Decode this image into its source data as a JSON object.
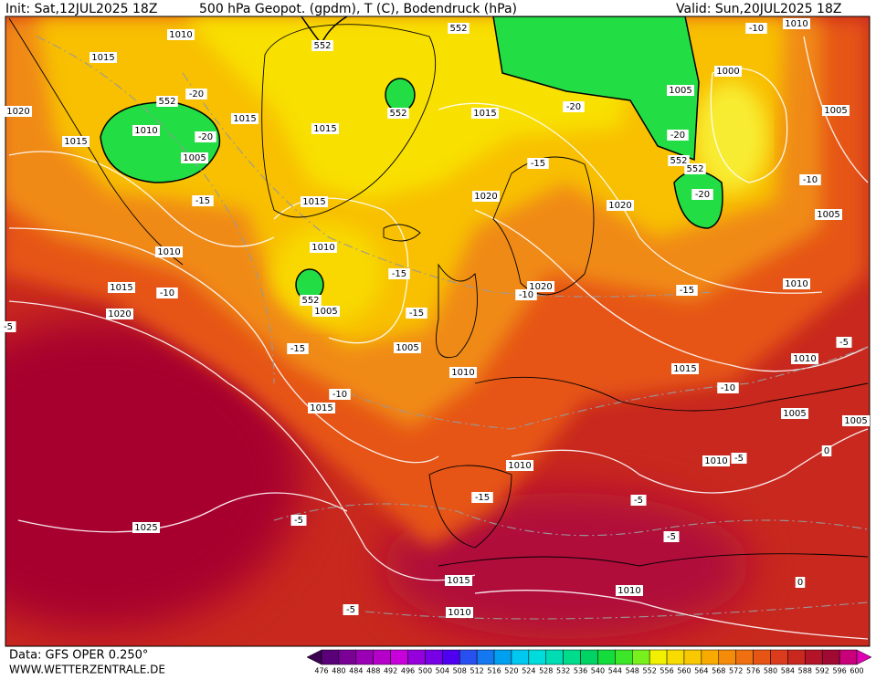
{
  "header": {
    "init": "Init: Sat,12JUL2025 18Z",
    "title": "500 hPa Geopot. (gpdm), T (C), Bodendruck (hPa)",
    "valid": "Valid: Sun,20JUL2025 18Z"
  },
  "map": {
    "labels": [
      "1010",
      "1015",
      "1020",
      "1015",
      "1010",
      "552",
      "-20",
      "-20",
      "1005",
      "-15",
      "1010",
      "1015",
      "-10",
      "1020",
      "1015",
      "1015",
      "1015",
      "552",
      "552",
      "552",
      "1015",
      "-20",
      "-15",
      "1020",
      "1020",
      "1010",
      "552",
      "1005",
      "-15",
      "-15",
      "1005",
      "-15",
      "1010",
      "1020",
      "-10",
      "-15",
      "1015",
      "-10",
      "1015",
      "-10",
      "1010",
      "-15",
      "-5",
      "1025",
      "-5",
      "-5",
      "1015",
      "1010",
      "1010",
      "-5",
      "-10",
      "1010",
      "1000",
      "1005",
      "1005",
      "-20",
      "552",
      "552",
      "-20",
      "-10",
      "1005",
      "1010",
      "-5",
      "1010",
      "1005",
      "1005",
      "-5",
      "1010",
      "0",
      "0",
      "-5"
    ]
  },
  "footer": {
    "data": "Data: GFS OPER 0.250°",
    "site": "WWW.WETTERZENTRALE.DE"
  },
  "colorbar": {
    "ticks": [
      476,
      480,
      484,
      488,
      492,
      496,
      500,
      504,
      508,
      512,
      516,
      520,
      524,
      528,
      532,
      536,
      540,
      544,
      548,
      552,
      556,
      560,
      564,
      568,
      572,
      576,
      580,
      584,
      588,
      592,
      596,
      600
    ],
    "colors": [
      "#3c0050",
      "#5a0078",
      "#7a0096",
      "#9a00b4",
      "#b400c8",
      "#c800dc",
      "#9600dc",
      "#7800e6",
      "#5000f0",
      "#2850f0",
      "#1478f0",
      "#00a0f0",
      "#00c8f0",
      "#00dcdc",
      "#00dcb4",
      "#00dc8c",
      "#00d264",
      "#14dc3c",
      "#3ce628",
      "#78f01e",
      "#f0f000",
      "#f8dc00",
      "#f8c800",
      "#f8aa00",
      "#f48c0a",
      "#ee7010",
      "#e65514",
      "#dc3c1e",
      "#c8281e",
      "#b41428",
      "#a00a32",
      "#c8007a",
      "#e000b4"
    ]
  }
}
